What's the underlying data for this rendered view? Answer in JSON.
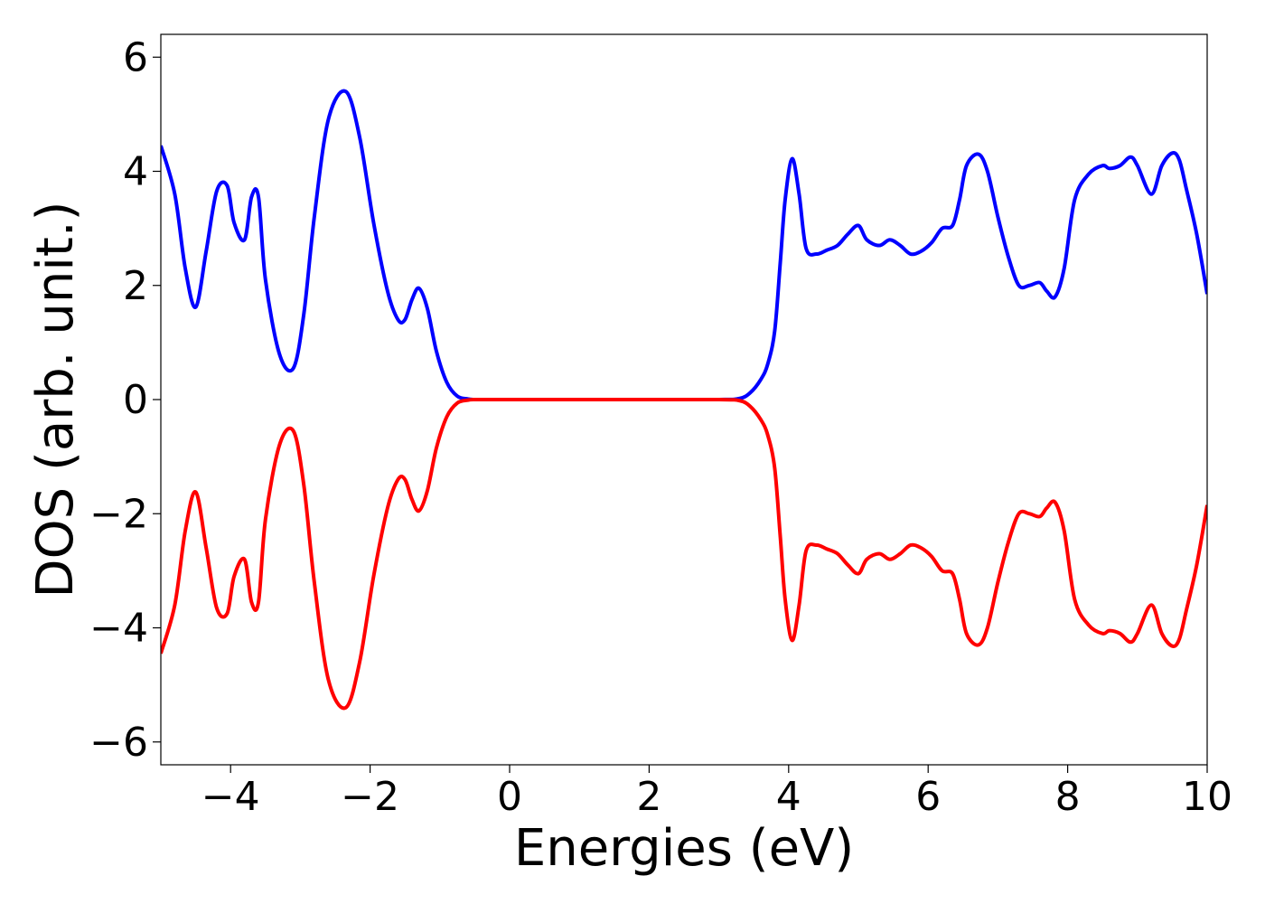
{
  "chart_data": {
    "type": "line",
    "title": "",
    "xlabel": "Energies (eV)",
    "ylabel": "DOS (arb. unit.)",
    "xlim": [
      -5,
      10
    ],
    "ylim": [
      -6.4,
      6.4
    ],
    "xticks": [
      -4,
      -2,
      0,
      2,
      4,
      6,
      8,
      10
    ],
    "xtick_labels": [
      "−4",
      "−2",
      "0",
      "2",
      "4",
      "6",
      "8",
      "10"
    ],
    "yticks": [
      -6,
      -4,
      -2,
      0,
      2,
      4,
      6
    ],
    "ytick_labels": [
      "−6",
      "−4",
      "−2",
      "0",
      "2",
      "4",
      "6"
    ],
    "grid": false,
    "legend": "none",
    "series": [
      {
        "color": "#0000ff",
        "x": [
          -5.0,
          -4.8,
          -4.65,
          -4.5,
          -4.35,
          -4.2,
          -4.05,
          -3.95,
          -3.8,
          -3.7,
          -3.6,
          -3.5,
          -3.3,
          -3.1,
          -2.95,
          -2.8,
          -2.6,
          -2.35,
          -2.15,
          -1.95,
          -1.75,
          -1.6,
          -1.5,
          -1.4,
          -1.3,
          -1.18,
          -1.05,
          -0.9,
          -0.75,
          -0.6,
          -0.5,
          -0.3,
          0.0,
          1.0,
          2.0,
          3.0,
          3.3,
          3.45,
          3.6,
          3.7,
          3.8,
          3.88,
          3.95,
          4.05,
          4.15,
          4.25,
          4.4,
          4.55,
          4.7,
          4.85,
          5.0,
          5.12,
          5.3,
          5.45,
          5.6,
          5.75,
          5.9,
          6.05,
          6.2,
          6.35,
          6.45,
          6.55,
          6.72,
          6.85,
          7.0,
          7.15,
          7.3,
          7.45,
          7.6,
          7.7,
          7.82,
          7.95,
          8.1,
          8.3,
          8.5,
          8.6,
          8.75,
          8.9,
          9.0,
          9.2,
          9.35,
          9.5,
          9.6,
          9.7,
          9.85,
          10.0
        ],
        "values": [
          4.45,
          3.6,
          2.3,
          1.62,
          2.6,
          3.65,
          3.75,
          3.1,
          2.8,
          3.55,
          3.55,
          2.1,
          0.8,
          0.55,
          1.5,
          3.2,
          4.9,
          5.4,
          4.6,
          3.1,
          1.9,
          1.4,
          1.4,
          1.75,
          1.95,
          1.6,
          0.85,
          0.3,
          0.06,
          0.01,
          0.0,
          0.0,
          0.0,
          0.0,
          0.0,
          0.0,
          0.02,
          0.12,
          0.35,
          0.62,
          1.2,
          2.4,
          3.5,
          4.22,
          3.6,
          2.65,
          2.55,
          2.62,
          2.7,
          2.9,
          3.05,
          2.8,
          2.7,
          2.8,
          2.7,
          2.55,
          2.6,
          2.75,
          3.0,
          3.05,
          3.5,
          4.1,
          4.3,
          4.0,
          3.2,
          2.5,
          2.0,
          2.0,
          2.05,
          1.9,
          1.8,
          2.3,
          3.5,
          3.95,
          4.1,
          4.05,
          4.1,
          4.25,
          4.1,
          3.6,
          4.1,
          4.32,
          4.2,
          3.7,
          2.9,
          1.85
        ]
      },
      {
        "color": "#ff0000",
        "x": [
          -5.0,
          -4.8,
          -4.65,
          -4.5,
          -4.35,
          -4.2,
          -4.05,
          -3.95,
          -3.8,
          -3.7,
          -3.6,
          -3.5,
          -3.3,
          -3.1,
          -2.95,
          -2.8,
          -2.6,
          -2.35,
          -2.15,
          -1.95,
          -1.75,
          -1.6,
          -1.5,
          -1.4,
          -1.3,
          -1.18,
          -1.05,
          -0.9,
          -0.75,
          -0.6,
          -0.5,
          -0.3,
          0.0,
          1.0,
          2.0,
          3.0,
          3.3,
          3.45,
          3.6,
          3.7,
          3.8,
          3.88,
          3.95,
          4.05,
          4.15,
          4.25,
          4.4,
          4.55,
          4.7,
          4.85,
          5.0,
          5.12,
          5.3,
          5.45,
          5.6,
          5.75,
          5.9,
          6.05,
          6.2,
          6.35,
          6.45,
          6.55,
          6.72,
          6.85,
          7.0,
          7.15,
          7.3,
          7.45,
          7.6,
          7.7,
          7.82,
          7.95,
          8.1,
          8.3,
          8.5,
          8.6,
          8.75,
          8.9,
          9.0,
          9.2,
          9.35,
          9.5,
          9.6,
          9.7,
          9.85,
          10.0
        ],
        "values": [
          -4.45,
          -3.6,
          -2.3,
          -1.62,
          -2.6,
          -3.65,
          -3.75,
          -3.1,
          -2.8,
          -3.55,
          -3.55,
          -2.1,
          -0.8,
          -0.55,
          -1.5,
          -3.2,
          -4.9,
          -5.4,
          -4.6,
          -3.1,
          -1.9,
          -1.4,
          -1.4,
          -1.75,
          -1.95,
          -1.6,
          -0.85,
          -0.3,
          -0.06,
          -0.01,
          0.0,
          0.0,
          0.0,
          0.0,
          0.0,
          0.0,
          -0.02,
          -0.12,
          -0.35,
          -0.62,
          -1.2,
          -2.4,
          -3.5,
          -4.22,
          -3.6,
          -2.65,
          -2.55,
          -2.62,
          -2.7,
          -2.9,
          -3.05,
          -2.8,
          -2.7,
          -2.8,
          -2.7,
          -2.55,
          -2.6,
          -2.75,
          -3.0,
          -3.05,
          -3.5,
          -4.1,
          -4.3,
          -4.0,
          -3.2,
          -2.5,
          -2.0,
          -2.0,
          -2.05,
          -1.9,
          -1.8,
          -2.3,
          -3.5,
          -3.95,
          -4.1,
          -4.05,
          -4.1,
          -4.25,
          -4.1,
          -3.6,
          -4.1,
          -4.32,
          -4.2,
          -3.7,
          -2.9,
          -1.85
        ]
      }
    ]
  }
}
